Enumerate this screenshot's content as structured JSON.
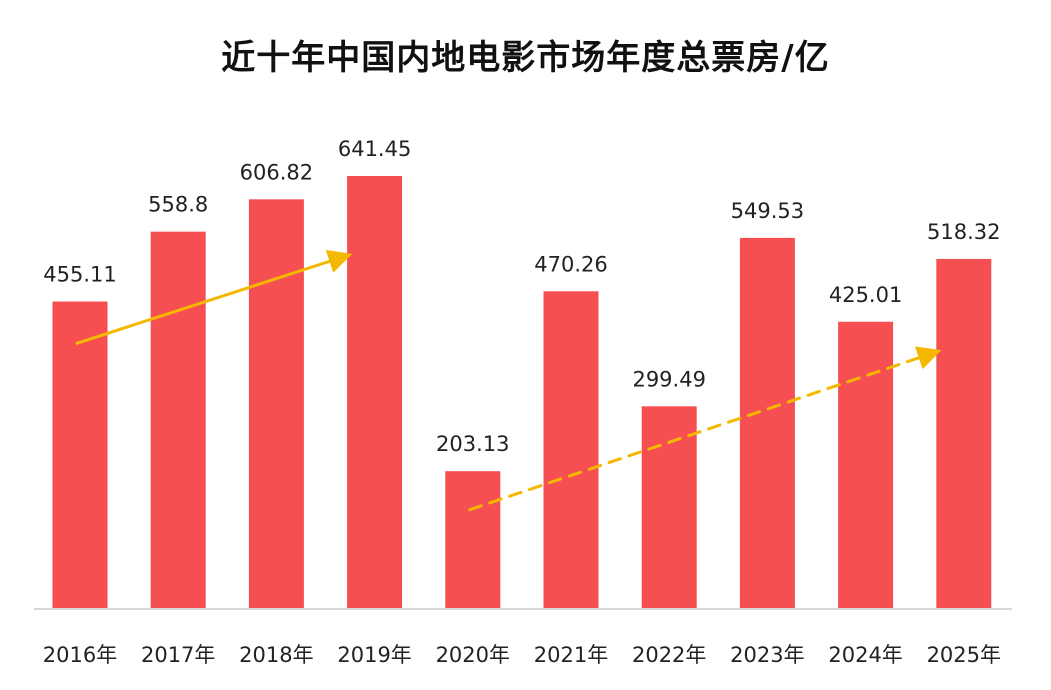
{
  "chart_data": {
    "type": "bar",
    "title": "近十年中国内地电影市场年度总票房/亿",
    "categories": [
      "2016年",
      "2017年",
      "2018年",
      "2019年",
      "2020年",
      "2021年",
      "2022年",
      "2023年",
      "2024年",
      "2025年"
    ],
    "values": [
      455.11,
      558.8,
      606.82,
      641.45,
      203.13,
      470.26,
      299.49,
      549.53,
      425.01,
      518.32
    ],
    "value_labels": [
      "455.11",
      "558.8",
      "606.82",
      "641.45",
      "203.13",
      "470.26",
      "299.49",
      "549.53",
      "425.01",
      "518.32"
    ],
    "xlabel": "",
    "ylabel": "",
    "ylim": [
      0,
      641.45
    ],
    "grid": false,
    "legend": "none",
    "trend_arrows": [
      {
        "from_category": "2016年",
        "to_category": "2019年",
        "style": "solid",
        "from_value": 393,
        "to_value": 523
      },
      {
        "from_category": "2020年",
        "to_category": "2025年",
        "style": "dashed",
        "from_value": 146,
        "to_value": 380
      }
    ],
    "colors": {
      "bar": "#F64F52",
      "arrow": "#F5B800",
      "baseline": "#cccccc"
    }
  }
}
